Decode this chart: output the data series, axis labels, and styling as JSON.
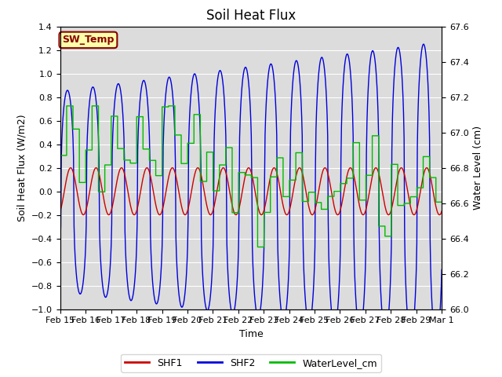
{
  "title": "Soil Heat Flux",
  "xlabel": "Time",
  "ylabel_left": "Soil Heat Flux (W/m2)",
  "ylabel_right": "Water Level (cm)",
  "ylim_left": [
    -1.0,
    1.4
  ],
  "ylim_right": [
    66.0,
    67.6
  ],
  "yticks_left": [
    -1.0,
    -0.8,
    -0.6,
    -0.4,
    -0.2,
    0.0,
    0.2,
    0.4,
    0.6,
    0.8,
    1.0,
    1.2,
    1.4
  ],
  "yticks_right": [
    66.0,
    66.2,
    66.4,
    66.6,
    66.8,
    67.0,
    67.2,
    67.4,
    67.6
  ],
  "xtick_labels": [
    "Feb 15",
    "Feb 16",
    "Feb 17",
    "Feb 18",
    "Feb 19",
    "Feb 20",
    "Feb 21",
    "Feb 22",
    "Feb 23",
    "Feb 24",
    "Feb 25",
    "Feb 26",
    "Feb 27",
    "Feb 28",
    "Feb 29",
    "Mar 1"
  ],
  "color_shf1": "#cc0000",
  "color_shf2": "#0000dd",
  "color_water": "#00bb00",
  "color_bg": "#dcdcdc",
  "annotation_text": "SW_Temp",
  "annotation_bg": "#ffffaa",
  "annotation_fg": "#880000",
  "legend_labels": [
    "SHF1",
    "SHF2",
    "WaterLevel_cm"
  ],
  "title_fontsize": 12,
  "label_fontsize": 9,
  "tick_fontsize": 8
}
